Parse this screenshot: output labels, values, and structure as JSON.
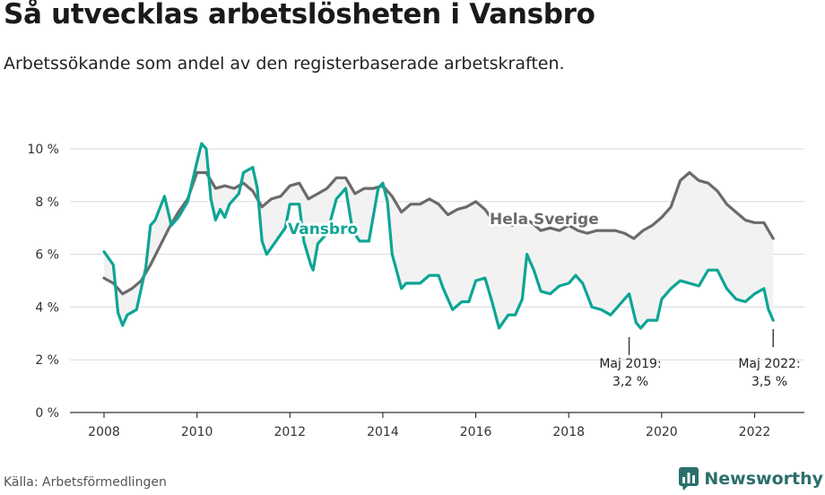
{
  "title": "Så utvecklas arbetslösheten i Vansbro",
  "subtitle": "Arbetssökande som andel av den registerbaserade arbetskraften.",
  "source": "Källa: Arbetsförmedlingen",
  "brand": "Newsworthy",
  "colors": {
    "vansbro": "#0ea595",
    "sverige": "#6b6b6b",
    "gap": "#f2f2f2",
    "brand": "#2a6f6c"
  },
  "chart_data": {
    "type": "line",
    "ylim": [
      0,
      10
    ],
    "xlim": [
      2007.5,
      2023.0
    ],
    "yticks": [
      0,
      2,
      4,
      6,
      8,
      10
    ],
    "ytick_labels": [
      "0 %",
      "2 %",
      "4 %",
      "6 %",
      "8 %",
      "10 %"
    ],
    "xticks": [
      2008,
      2010,
      2012,
      2014,
      2016,
      2018,
      2020,
      2022
    ],
    "xtick_labels": [
      "2008",
      "2010",
      "2012",
      "2014",
      "2016",
      "2018",
      "2020",
      "2022"
    ],
    "grid": "horizontal",
    "series": [
      {
        "name": "Hela Sverige",
        "points": [
          [
            2008.0,
            5.1
          ],
          [
            2008.2,
            4.9
          ],
          [
            2008.4,
            4.5
          ],
          [
            2008.6,
            4.7
          ],
          [
            2008.8,
            5.0
          ],
          [
            2009.0,
            5.6
          ],
          [
            2009.2,
            6.3
          ],
          [
            2009.4,
            7.0
          ],
          [
            2009.6,
            7.6
          ],
          [
            2009.8,
            8.1
          ],
          [
            2010.0,
            9.1
          ],
          [
            2010.2,
            9.1
          ],
          [
            2010.4,
            8.5
          ],
          [
            2010.6,
            8.6
          ],
          [
            2010.8,
            8.5
          ],
          [
            2011.0,
            8.7
          ],
          [
            2011.2,
            8.4
          ],
          [
            2011.4,
            7.8
          ],
          [
            2011.6,
            8.1
          ],
          [
            2011.8,
            8.2
          ],
          [
            2012.0,
            8.6
          ],
          [
            2012.2,
            8.7
          ],
          [
            2012.4,
            8.1
          ],
          [
            2012.6,
            8.3
          ],
          [
            2012.8,
            8.5
          ],
          [
            2013.0,
            8.9
          ],
          [
            2013.2,
            8.9
          ],
          [
            2013.4,
            8.3
          ],
          [
            2013.6,
            8.5
          ],
          [
            2013.8,
            8.5
          ],
          [
            2014.0,
            8.6
          ],
          [
            2014.2,
            8.2
          ],
          [
            2014.4,
            7.6
          ],
          [
            2014.6,
            7.9
          ],
          [
            2014.8,
            7.9
          ],
          [
            2015.0,
            8.1
          ],
          [
            2015.2,
            7.9
          ],
          [
            2015.4,
            7.5
          ],
          [
            2015.6,
            7.7
          ],
          [
            2015.8,
            7.8
          ],
          [
            2016.0,
            8.0
          ],
          [
            2016.2,
            7.7
          ],
          [
            2016.4,
            7.2
          ],
          [
            2016.6,
            7.2
          ],
          [
            2016.8,
            7.1
          ],
          [
            2017.0,
            7.4
          ],
          [
            2017.2,
            7.2
          ],
          [
            2017.4,
            6.9
          ],
          [
            2017.6,
            7.0
          ],
          [
            2017.8,
            6.9
          ],
          [
            2018.0,
            7.1
          ],
          [
            2018.2,
            6.9
          ],
          [
            2018.4,
            6.8
          ],
          [
            2018.6,
            6.9
          ],
          [
            2018.8,
            6.9
          ],
          [
            2019.0,
            6.9
          ],
          [
            2019.2,
            6.8
          ],
          [
            2019.4,
            6.6
          ],
          [
            2019.6,
            6.9
          ],
          [
            2019.8,
            7.1
          ],
          [
            2020.0,
            7.4
          ],
          [
            2020.2,
            7.8
          ],
          [
            2020.4,
            8.8
          ],
          [
            2020.6,
            9.1
          ],
          [
            2020.8,
            8.8
          ],
          [
            2021.0,
            8.7
          ],
          [
            2021.2,
            8.4
          ],
          [
            2021.4,
            7.9
          ],
          [
            2021.6,
            7.6
          ],
          [
            2021.8,
            7.3
          ],
          [
            2022.0,
            7.2
          ],
          [
            2022.2,
            7.2
          ],
          [
            2022.4,
            6.6
          ]
        ]
      },
      {
        "name": "Vansbro",
        "points": [
          [
            2008.0,
            6.1
          ],
          [
            2008.2,
            5.6
          ],
          [
            2008.3,
            3.8
          ],
          [
            2008.4,
            3.3
          ],
          [
            2008.5,
            3.7
          ],
          [
            2008.7,
            3.9
          ],
          [
            2008.9,
            5.5
          ],
          [
            2009.0,
            7.1
          ],
          [
            2009.1,
            7.3
          ],
          [
            2009.3,
            8.2
          ],
          [
            2009.45,
            7.1
          ],
          [
            2009.6,
            7.4
          ],
          [
            2009.8,
            8.0
          ],
          [
            2010.0,
            9.5
          ],
          [
            2010.1,
            10.2
          ],
          [
            2010.2,
            10.0
          ],
          [
            2010.3,
            8.1
          ],
          [
            2010.4,
            7.3
          ],
          [
            2010.5,
            7.7
          ],
          [
            2010.6,
            7.4
          ],
          [
            2010.7,
            7.9
          ],
          [
            2010.9,
            8.3
          ],
          [
            2011.0,
            9.1
          ],
          [
            2011.2,
            9.3
          ],
          [
            2011.3,
            8.5
          ],
          [
            2011.4,
            6.5
          ],
          [
            2011.5,
            6.0
          ],
          [
            2011.7,
            6.5
          ],
          [
            2011.9,
            7.0
          ],
          [
            2012.0,
            7.9
          ],
          [
            2012.2,
            7.9
          ],
          [
            2012.3,
            6.5
          ],
          [
            2012.45,
            5.6
          ],
          [
            2012.5,
            5.4
          ],
          [
            2012.6,
            6.4
          ],
          [
            2012.8,
            6.8
          ],
          [
            2013.0,
            8.1
          ],
          [
            2013.2,
            8.5
          ],
          [
            2013.35,
            6.9
          ],
          [
            2013.5,
            6.5
          ],
          [
            2013.7,
            6.5
          ],
          [
            2013.9,
            8.5
          ],
          [
            2014.0,
            8.7
          ],
          [
            2014.1,
            8.0
          ],
          [
            2014.2,
            6.0
          ],
          [
            2014.4,
            4.7
          ],
          [
            2014.5,
            4.9
          ],
          [
            2014.8,
            4.9
          ],
          [
            2015.0,
            5.2
          ],
          [
            2015.2,
            5.2
          ],
          [
            2015.3,
            4.7
          ],
          [
            2015.5,
            3.9
          ],
          [
            2015.7,
            4.2
          ],
          [
            2015.85,
            4.2
          ],
          [
            2016.0,
            5.0
          ],
          [
            2016.2,
            5.1
          ],
          [
            2016.35,
            4.2
          ],
          [
            2016.5,
            3.2
          ],
          [
            2016.7,
            3.7
          ],
          [
            2016.85,
            3.7
          ],
          [
            2017.0,
            4.3
          ],
          [
            2017.1,
            6.0
          ],
          [
            2017.25,
            5.4
          ],
          [
            2017.4,
            4.6
          ],
          [
            2017.6,
            4.5
          ],
          [
            2017.8,
            4.8
          ],
          [
            2018.0,
            4.9
          ],
          [
            2018.15,
            5.2
          ],
          [
            2018.3,
            4.9
          ],
          [
            2018.5,
            4.0
          ],
          [
            2018.7,
            3.9
          ],
          [
            2018.9,
            3.7
          ],
          [
            2019.1,
            4.1
          ],
          [
            2019.2,
            4.3
          ],
          [
            2019.3,
            4.5
          ],
          [
            2019.45,
            3.4
          ],
          [
            2019.55,
            3.2
          ],
          [
            2019.7,
            3.5
          ],
          [
            2019.9,
            3.5
          ],
          [
            2020.0,
            4.3
          ],
          [
            2020.2,
            4.7
          ],
          [
            2020.4,
            5.0
          ],
          [
            2020.6,
            4.9
          ],
          [
            2020.8,
            4.8
          ],
          [
            2021.0,
            5.4
          ],
          [
            2021.2,
            5.4
          ],
          [
            2021.4,
            4.7
          ],
          [
            2021.6,
            4.3
          ],
          [
            2021.8,
            4.2
          ],
          [
            2022.0,
            4.5
          ],
          [
            2022.2,
            4.7
          ],
          [
            2022.3,
            3.9
          ],
          [
            2022.4,
            3.5
          ]
        ]
      }
    ],
    "annotations": [
      {
        "x": 2019.3,
        "y": 3.2,
        "lines": [
          "Maj 2019:",
          "3,2 %"
        ]
      },
      {
        "x": 2022.4,
        "y": 3.5,
        "lines": [
          "Maj 2022:",
          "3,5 %"
        ]
      }
    ]
  }
}
